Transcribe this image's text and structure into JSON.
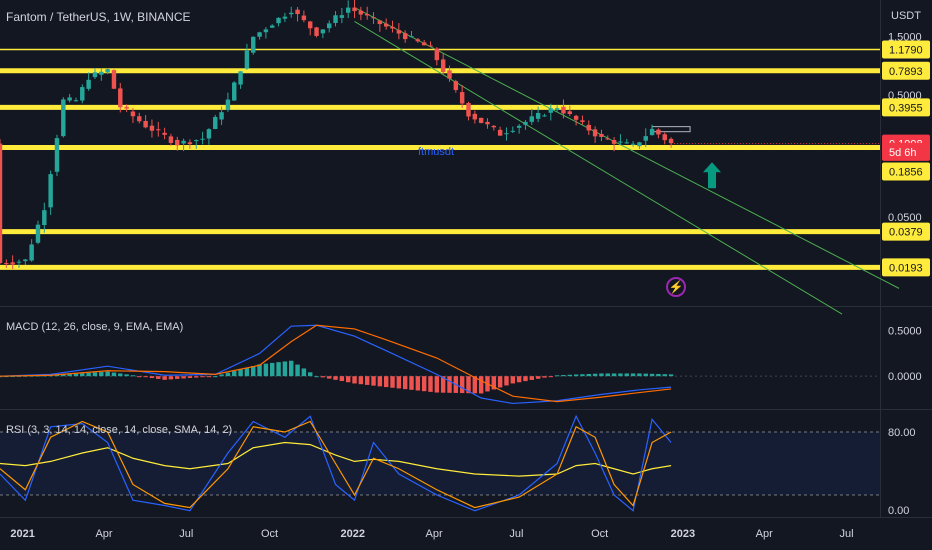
{
  "header": {
    "title": "Fantom / TetherUS, 1W, BINANCE",
    "currency": "USDT",
    "watermark": "ftmusdt"
  },
  "colors": {
    "background": "#131722",
    "up": "#26a69a",
    "down": "#ef5350",
    "level": "#ffeb3b",
    "channel": "#4caf50",
    "macd_line": "#2962ff",
    "signal_line": "#ff6d00",
    "rsi_fast": "#2962ff",
    "rsi_slow": "#ff9800",
    "rsi_sma": "#ffeb3b",
    "current_price": "#f23645",
    "arrow": "#089981"
  },
  "icons": [
    "up-arrow-icon",
    "flash-icon"
  ],
  "price_axis": {
    "scale": "log",
    "ticks": [
      "1.5000",
      "0.5000",
      "0.0500"
    ],
    "tags": [
      {
        "label": "1.1790",
        "price": 1.179,
        "style": "level"
      },
      {
        "label": "0.7893",
        "price": 0.7893,
        "style": "level"
      },
      {
        "label": "0.3955",
        "price": 0.3955,
        "style": "level"
      },
      {
        "label": "0.1998",
        "price": 0.1998,
        "style": "current"
      },
      {
        "label": "5d 6h",
        "price": 0.171,
        "style": "countdown"
      },
      {
        "label": "0.1856",
        "price": 0.118,
        "style": "level"
      },
      {
        "label": "0.0379",
        "price": 0.0379,
        "style": "level"
      },
      {
        "label": "0.0193",
        "price": 0.0193,
        "style": "level"
      }
    ]
  },
  "time_axis": [
    "2021",
    "Apr",
    "Jul",
    "Oct",
    "2022",
    "Apr",
    "Jul",
    "Oct",
    "2023",
    "Apr",
    "Jul"
  ],
  "macd": {
    "label": "MACD (12, 26, close, 9, EMA, EMA)",
    "ticks": [
      "0.5000",
      "0.0000"
    ]
  },
  "rsi": {
    "label": "RSI (3, 3, 14, 14, close, 14, close, SMA, 14, 2)",
    "ticks": [
      "80.00",
      "0.00"
    ]
  },
  "chart_data": {
    "type": "candlestick",
    "title": "Fantom / TetherUS, 1W, BINANCE",
    "x_start": "2020-12-07",
    "x_end": "2023-08-07",
    "ylim": [
      0.0095,
      3.0
    ],
    "y_scale": "log",
    "grid": false,
    "horizontal_levels": [
      1.179,
      0.7893,
      0.3955,
      0.1856,
      0.0379,
      0.0193
    ],
    "price_path": [
      {
        "x": "2020-12-07",
        "close": 0.021
      },
      {
        "x": "2021-01-04",
        "close": 0.022
      },
      {
        "x": "2021-01-25",
        "close": 0.06
      },
      {
        "x": "2021-02-15",
        "close": 0.45
      },
      {
        "x": "2021-03-01",
        "close": 0.45
      },
      {
        "x": "2021-03-15",
        "close": 0.7
      },
      {
        "x": "2021-04-05",
        "close": 0.8
      },
      {
        "x": "2021-04-19",
        "close": 0.4
      },
      {
        "x": "2021-05-17",
        "close": 0.28
      },
      {
        "x": "2021-06-21",
        "close": 0.2
      },
      {
        "x": "2021-07-19",
        "close": 0.22
      },
      {
        "x": "2021-08-16",
        "close": 0.45
      },
      {
        "x": "2021-09-13",
        "close": 1.5
      },
      {
        "x": "2021-10-25",
        "close": 2.5
      },
      {
        "x": "2021-11-22",
        "close": 1.6
      },
      {
        "x": "2021-12-27",
        "close": 2.6
      },
      {
        "x": "2022-02-14",
        "close": 1.7
      },
      {
        "x": "2022-03-28",
        "close": 1.2
      },
      {
        "x": "2022-05-09",
        "close": 0.35
      },
      {
        "x": "2022-06-13",
        "close": 0.24
      },
      {
        "x": "2022-08-15",
        "close": 0.4
      },
      {
        "x": "2022-10-03",
        "close": 0.22
      },
      {
        "x": "2022-11-07",
        "close": 0.19
      },
      {
        "x": "2022-11-28",
        "close": 0.26
      },
      {
        "x": "2022-12-19",
        "close": 0.1998
      }
    ],
    "channel": {
      "upper": [
        {
          "x": "2022-01-03",
          "y": 2.6
        },
        {
          "x": "2023-08-28",
          "y": 0.013
        }
      ],
      "lower": [
        {
          "x": "2022-01-03",
          "y": 2.0
        },
        {
          "x": "2023-06-26",
          "y": 0.008
        }
      ]
    },
    "resistance_box": {
      "x_from": "2022-11-28",
      "x_to": "2023-01-09",
      "y_from": 0.25,
      "y_to": 0.275
    },
    "macd": {
      "ylim": [
        -0.35,
        0.75
      ],
      "points": [
        {
          "x": "2020-12-07",
          "macd": 0.0,
          "signal": 0.0
        },
        {
          "x": "2021-02-01",
          "macd": 0.02,
          "signal": 0.01
        },
        {
          "x": "2021-04-05",
          "macd": 0.11,
          "signal": 0.06
        },
        {
          "x": "2021-06-07",
          "macd": 0.01,
          "signal": 0.05
        },
        {
          "x": "2021-08-02",
          "macd": 0.02,
          "signal": 0.02
        },
        {
          "x": "2021-09-20",
          "macd": 0.25,
          "signal": 0.12
        },
        {
          "x": "2021-10-25",
          "macd": 0.55,
          "signal": 0.38
        },
        {
          "x": "2021-11-22",
          "macd": 0.56,
          "signal": 0.56
        },
        {
          "x": "2022-01-03",
          "macd": 0.44,
          "signal": 0.52
        },
        {
          "x": "2022-02-07",
          "macd": 0.28,
          "signal": 0.4
        },
        {
          "x": "2022-04-04",
          "macd": 0.02,
          "signal": 0.2
        },
        {
          "x": "2022-05-23",
          "macd": -0.24,
          "signal": -0.05
        },
        {
          "x": "2022-06-27",
          "macd": -0.3,
          "signal": -0.22
        },
        {
          "x": "2022-08-15",
          "macd": -0.27,
          "signal": -0.28
        },
        {
          "x": "2022-10-03",
          "macd": -0.2,
          "signal": -0.23
        },
        {
          "x": "2022-11-14",
          "macd": -0.15,
          "signal": -0.18
        },
        {
          "x": "2022-12-19",
          "macd": -0.12,
          "signal": -0.14
        }
      ]
    },
    "rsi": {
      "ylim": [
        0,
        100
      ],
      "bands": [
        80,
        20
      ],
      "points": [
        {
          "x": "2020-12-07",
          "k": 40,
          "d": 45,
          "sma": 50
        },
        {
          "x": "2021-01-04",
          "k": 15,
          "d": 25,
          "sma": 48
        },
        {
          "x": "2021-02-01",
          "k": 85,
          "d": 75,
          "sma": 52
        },
        {
          "x": "2021-03-08",
          "k": 88,
          "d": 90,
          "sma": 60
        },
        {
          "x": "2021-04-05",
          "k": 70,
          "d": 80,
          "sma": 65
        },
        {
          "x": "2021-05-03",
          "k": 15,
          "d": 30,
          "sma": 55
        },
        {
          "x": "2021-06-07",
          "k": 10,
          "d": 12,
          "sma": 48
        },
        {
          "x": "2021-07-05",
          "k": 5,
          "d": 8,
          "sma": 45
        },
        {
          "x": "2021-08-16",
          "k": 60,
          "d": 45,
          "sma": 50
        },
        {
          "x": "2021-09-13",
          "k": 90,
          "d": 85,
          "sma": 65
        },
        {
          "x": "2021-10-18",
          "k": 75,
          "d": 80,
          "sma": 70
        },
        {
          "x": "2021-11-15",
          "k": 95,
          "d": 90,
          "sma": 68
        },
        {
          "x": "2021-12-13",
          "k": 30,
          "d": 50,
          "sma": 58
        },
        {
          "x": "2022-01-03",
          "k": 15,
          "d": 20,
          "sma": 52
        },
        {
          "x": "2022-01-24",
          "k": 70,
          "d": 55,
          "sma": 54
        },
        {
          "x": "2022-02-21",
          "k": 40,
          "d": 45,
          "sma": 52
        },
        {
          "x": "2022-04-04",
          "k": 20,
          "d": 25,
          "sma": 45
        },
        {
          "x": "2022-05-16",
          "k": 5,
          "d": 8,
          "sma": 40
        },
        {
          "x": "2022-07-04",
          "k": 20,
          "d": 18,
          "sma": 38
        },
        {
          "x": "2022-08-15",
          "k": 50,
          "d": 40,
          "sma": 40
        },
        {
          "x": "2022-09-05",
          "k": 95,
          "d": 85,
          "sma": 48
        },
        {
          "x": "2022-09-26",
          "k": 60,
          "d": 75,
          "sma": 50
        },
        {
          "x": "2022-10-17",
          "k": 20,
          "d": 30,
          "sma": 45
        },
        {
          "x": "2022-11-07",
          "k": 5,
          "d": 10,
          "sma": 40
        },
        {
          "x": "2022-11-28",
          "k": 92,
          "d": 70,
          "sma": 45
        },
        {
          "x": "2022-12-19",
          "k": 70,
          "d": 80,
          "sma": 48
        }
      ]
    }
  }
}
